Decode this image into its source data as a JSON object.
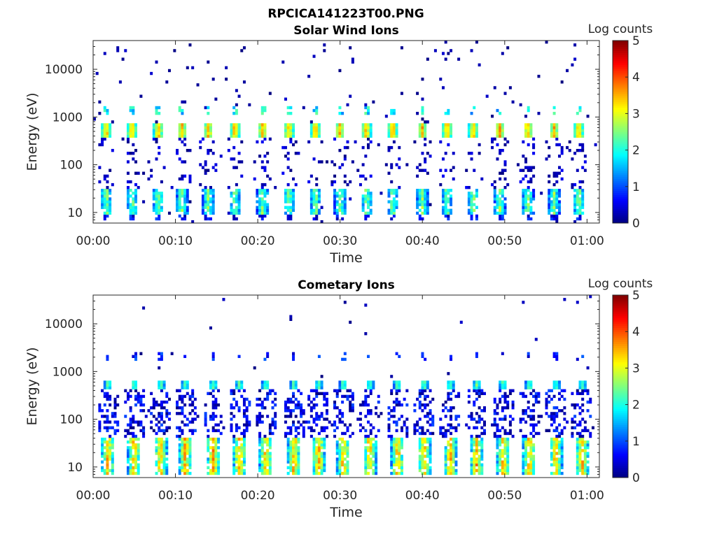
{
  "figure": {
    "title": "RPCICA141223T00.PNG"
  },
  "colorscale": {
    "name": "jet",
    "stops": [
      "#00007f",
      "#0000ff",
      "#007fff",
      "#00ffff",
      "#7fff7f",
      "#ffff00",
      "#ff7f00",
      "#ff0000",
      "#7f0000"
    ]
  },
  "chart_data": [
    {
      "type": "heatmap",
      "title": "Solar Wind Ions",
      "xlabel": "Time",
      "ylabel": "Energy (eV)",
      "yscale": "log",
      "ylim": [
        6,
        40000
      ],
      "xlim_minutes": [
        0,
        61.5
      ],
      "x_ticks": [
        "00:00",
        "00:10",
        "00:20",
        "00:30",
        "00:40",
        "00:50",
        "01:00"
      ],
      "y_ticks": [
        "10",
        "100",
        "1000",
        "10000"
      ],
      "colorbar": {
        "label": "Log counts",
        "min": 0,
        "max": 5,
        "ticks": [
          "0",
          "1",
          "2",
          "3",
          "4",
          "5"
        ]
      },
      "grid": false,
      "sweep_centers_minutes": [
        1.6,
        4.7,
        7.9,
        10.8,
        14.0,
        17.2,
        20.6,
        23.8,
        27.0,
        30.0,
        33.2,
        36.4,
        40.0,
        43.0,
        46.2,
        49.4,
        52.8,
        56.0,
        59.0
      ],
      "bands": [
        {
          "name": "solar-wind peak",
          "energy_range_eV": [
            400,
            700
          ],
          "max_log_counts": 3.2
        },
        {
          "name": "low-energy group",
          "energy_range_eV": [
            8,
            35
          ],
          "max_log_counts": 2.6
        }
      ]
    },
    {
      "type": "heatmap",
      "title": "Cometary Ions",
      "xlabel": "Time",
      "ylabel": "Energy (eV)",
      "yscale": "log",
      "ylim": [
        6,
        40000
      ],
      "xlim_minutes": [
        0,
        61.5
      ],
      "x_ticks": [
        "00:00",
        "00:10",
        "00:20",
        "00:30",
        "00:40",
        "00:50",
        "01:00"
      ],
      "y_ticks": [
        "10",
        "100",
        "1000",
        "10000"
      ],
      "colorbar": {
        "label": "Log counts",
        "min": 0,
        "max": 5,
        "ticks": [
          "0",
          "1",
          "2",
          "3",
          "4",
          "5"
        ]
      },
      "grid": false,
      "sweep_centers_minutes": [
        1.8,
        5.0,
        8.2,
        11.2,
        14.6,
        17.8,
        21.0,
        24.4,
        27.4,
        30.4,
        33.6,
        37.0,
        40.2,
        43.4,
        46.6,
        49.8,
        53.0,
        56.2,
        59.4
      ],
      "bands": [
        {
          "name": "solar-wind leakage",
          "energy_range_eV": [
            450,
            650
          ],
          "max_log_counts": 2.2
        },
        {
          "name": "cometary low-energy",
          "energy_range_eV": [
            7,
            40
          ],
          "max_log_counts": 3.3
        }
      ]
    }
  ]
}
